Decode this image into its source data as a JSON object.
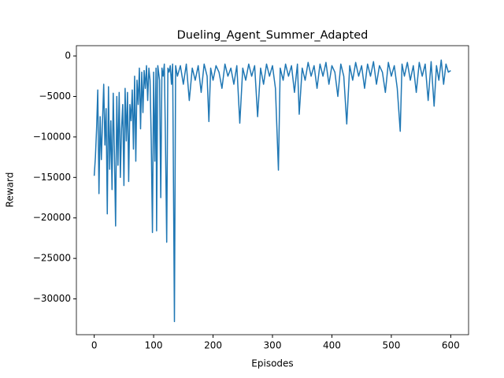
{
  "chart_data": {
    "type": "line",
    "title": "Dueling_Agent_Summer_Adapted",
    "x_label": "Episodes",
    "y_label": "Reward",
    "series": [
      {
        "name": "reward",
        "color": "#1f77b4",
        "x": [
          0,
          2,
          4,
          6,
          8,
          10,
          12,
          14,
          16,
          18,
          20,
          22,
          24,
          26,
          28,
          30,
          32,
          34,
          36,
          38,
          40,
          42,
          44,
          46,
          48,
          50,
          52,
          54,
          56,
          58,
          60,
          62,
          64,
          66,
          68,
          70,
          72,
          74,
          76,
          78,
          80,
          82,
          84,
          86,
          88,
          90,
          92,
          94,
          96,
          98,
          100,
          102,
          104,
          105,
          107,
          110,
          112,
          114,
          116,
          118,
          120,
          122,
          124,
          126,
          128,
          130,
          132,
          135,
          137,
          140,
          145,
          150,
          155,
          160,
          165,
          170,
          175,
          180,
          185,
          190,
          193,
          196,
          200,
          205,
          210,
          215,
          220,
          225,
          230,
          235,
          240,
          245,
          250,
          255,
          260,
          265,
          270,
          275,
          280,
          285,
          290,
          295,
          300,
          305,
          310,
          313,
          318,
          322,
          327,
          332,
          337,
          342,
          345,
          350,
          355,
          360,
          365,
          370,
          375,
          380,
          385,
          390,
          395,
          400,
          405,
          410,
          415,
          420,
          425,
          430,
          435,
          440,
          445,
          450,
          455,
          460,
          465,
          470,
          475,
          480,
          485,
          490,
          495,
          500,
          505,
          510,
          515,
          518,
          522,
          527,
          532,
          537,
          542,
          547,
          552,
          557,
          562,
          567,
          572,
          576,
          580,
          584,
          588,
          592,
          596,
          600
        ],
        "values": [
          -14800,
          -12500,
          -9000,
          -4200,
          -17000,
          -7500,
          -12800,
          -8000,
          -3500,
          -11000,
          -6500,
          -19500,
          -3800,
          -14000,
          -8000,
          -16500,
          -4600,
          -12000,
          -21000,
          -5000,
          -13500,
          -4500,
          -15000,
          -9000,
          -6000,
          -16000,
          -4000,
          -10500,
          -4500,
          -15500,
          -6000,
          -8000,
          -4200,
          -11500,
          -2500,
          -13000,
          -3000,
          -6000,
          -1500,
          -9000,
          -2000,
          -7000,
          -1800,
          -4000,
          -1200,
          -5500,
          -1500,
          -3000,
          -10500,
          -21800,
          -2000,
          -13000,
          -1500,
          -21600,
          -1200,
          -3000,
          -17500,
          -1500,
          -2500,
          -1000,
          -11000,
          -23000,
          -1500,
          -2000,
          -1200,
          -3500,
          -1000,
          -32800,
          -1200,
          -2500,
          -1200,
          -3500,
          -1000,
          -5500,
          -1500,
          -3000,
          -1200,
          -4500,
          -1000,
          -2500,
          -8100,
          -1500,
          -3000,
          -1200,
          -2000,
          -4000,
          -1000,
          -2500,
          -1500,
          -3500,
          -1200,
          -8300,
          -1500,
          -3000,
          -1000,
          -2500,
          -1200,
          -7500,
          -1500,
          -3500,
          -1000,
          -2500,
          -1200,
          -4000,
          -14100,
          -1500,
          -3000,
          -1000,
          -2500,
          -1200,
          -4500,
          -1000,
          -7200,
          -1500,
          -3000,
          -800,
          -2500,
          -1200,
          -4000,
          -1000,
          -2500,
          -800,
          -3500,
          -1200,
          -2000,
          -5000,
          -1000,
          -2500,
          -8400,
          -1200,
          -3000,
          -800,
          -2500,
          -1200,
          -4000,
          -1000,
          -2500,
          -700,
          -3500,
          -1200,
          -2000,
          -4500,
          -800,
          -2500,
          -1200,
          -4000,
          -9300,
          -1000,
          -2500,
          -800,
          -3000,
          -1200,
          -4500,
          -800,
          -2500,
          -1000,
          -5500,
          -700,
          -6200,
          -1200,
          -3000,
          -500,
          -3500,
          -1000,
          -2000,
          -1800
        ]
      }
    ],
    "xlim": [
      -30,
      630
    ],
    "ylim": [
      -34420,
      1270
    ],
    "xticks": [
      0,
      100,
      200,
      300,
      400,
      500,
      600
    ],
    "yticks": [
      {
        "value": -30000,
        "label": "−30000"
      },
      {
        "value": -25000,
        "label": "−25000"
      },
      {
        "value": -20000,
        "label": "−20000"
      },
      {
        "value": -15000,
        "label": "−15000"
      },
      {
        "value": -10000,
        "label": "−10000"
      },
      {
        "value": -5000,
        "label": "−5000"
      },
      0
    ]
  }
}
